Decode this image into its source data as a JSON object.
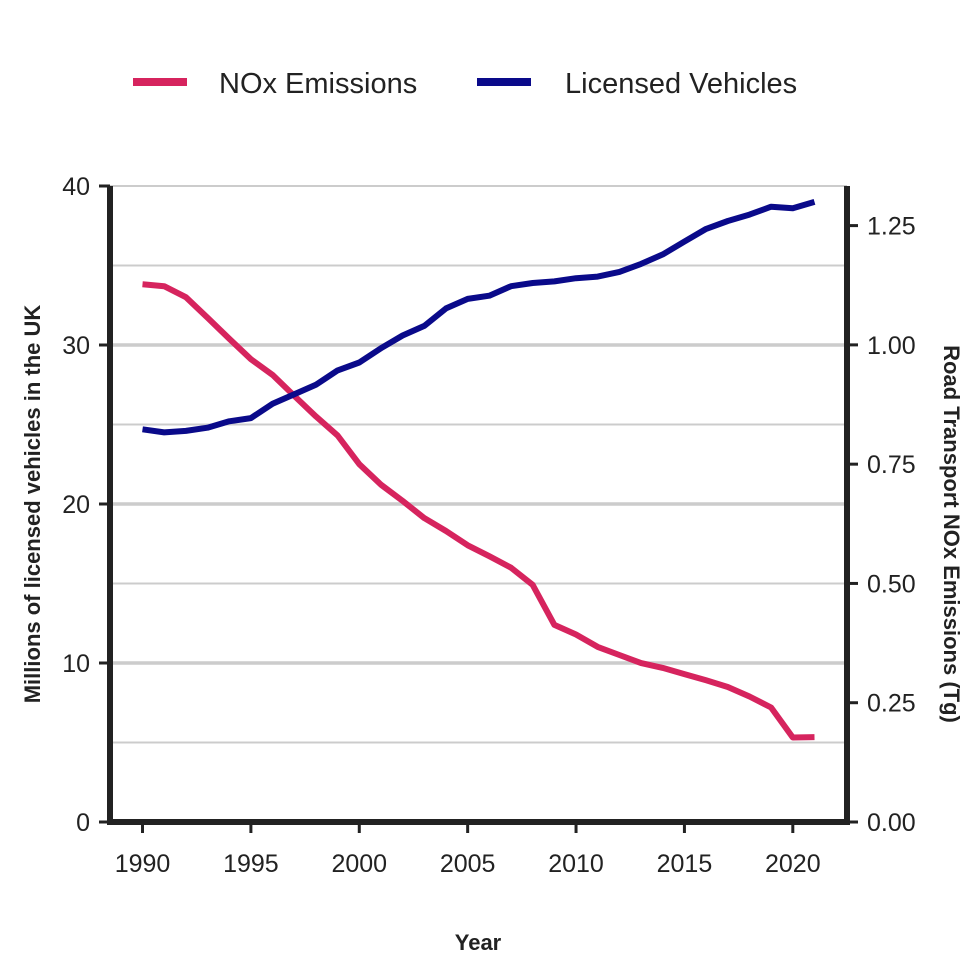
{
  "chart_data": {
    "type": "line",
    "xlabel": "Year",
    "ylabel_left": "Millions of licensed vehicles in the UK",
    "ylabel_right": "Road Transport NOx Emissions (Tg)",
    "xlim": [
      1988.5,
      2022.5
    ],
    "ylim_left": [
      0,
      40
    ],
    "ylim_right": [
      0,
      1.333
    ],
    "x_ticks": [
      1990,
      1995,
      2000,
      2005,
      2010,
      2015,
      2020
    ],
    "y_left_ticks": [
      0,
      10,
      20,
      30,
      40
    ],
    "y_right_ticks": [
      0.0,
      0.25,
      0.5,
      0.75,
      1.0,
      1.25
    ],
    "y_right_tick_labels": [
      "0.00",
      "0.25",
      "0.50",
      "0.75",
      "1.00",
      "1.25"
    ],
    "major_grid_left": [
      10,
      20,
      30
    ],
    "minor_grid_left": [
      5,
      15,
      25,
      35,
      40
    ],
    "grid": true,
    "legend_position": "top",
    "x": [
      1990,
      1991,
      1992,
      1993,
      1994,
      1995,
      1996,
      1997,
      1998,
      1999,
      2000,
      2001,
      2002,
      2003,
      2004,
      2005,
      2006,
      2007,
      2008,
      2009,
      2010,
      2011,
      2012,
      2013,
      2014,
      2015,
      2016,
      2017,
      2018,
      2019,
      2020,
      2021
    ],
    "series": [
      {
        "name": "NOx Emissions",
        "axis": "right",
        "color": "#d6245e",
        "values": [
          1.127,
          1.123,
          1.1,
          1.057,
          1.013,
          0.97,
          0.937,
          0.893,
          0.85,
          0.81,
          0.75,
          0.707,
          0.673,
          0.637,
          0.61,
          0.58,
          0.557,
          0.533,
          0.497,
          0.413,
          0.393,
          0.367,
          0.35,
          0.333,
          0.323,
          0.31,
          0.297,
          0.283,
          0.263,
          0.24,
          0.177,
          0.178
        ]
      },
      {
        "name": "Licensed Vehicles",
        "axis": "left",
        "color": "#0a0a8a",
        "values": [
          24.7,
          24.5,
          24.6,
          24.8,
          25.2,
          25.4,
          26.3,
          26.9,
          27.5,
          28.4,
          28.9,
          29.8,
          30.6,
          31.2,
          32.3,
          32.9,
          33.1,
          33.7,
          33.9,
          34.0,
          34.2,
          34.3,
          34.6,
          35.1,
          35.7,
          36.5,
          37.3,
          37.8,
          38.2,
          38.7,
          38.6,
          39.0
        ]
      }
    ]
  },
  "colors": {
    "axis": "#222222",
    "grid": "#cccccc"
  }
}
